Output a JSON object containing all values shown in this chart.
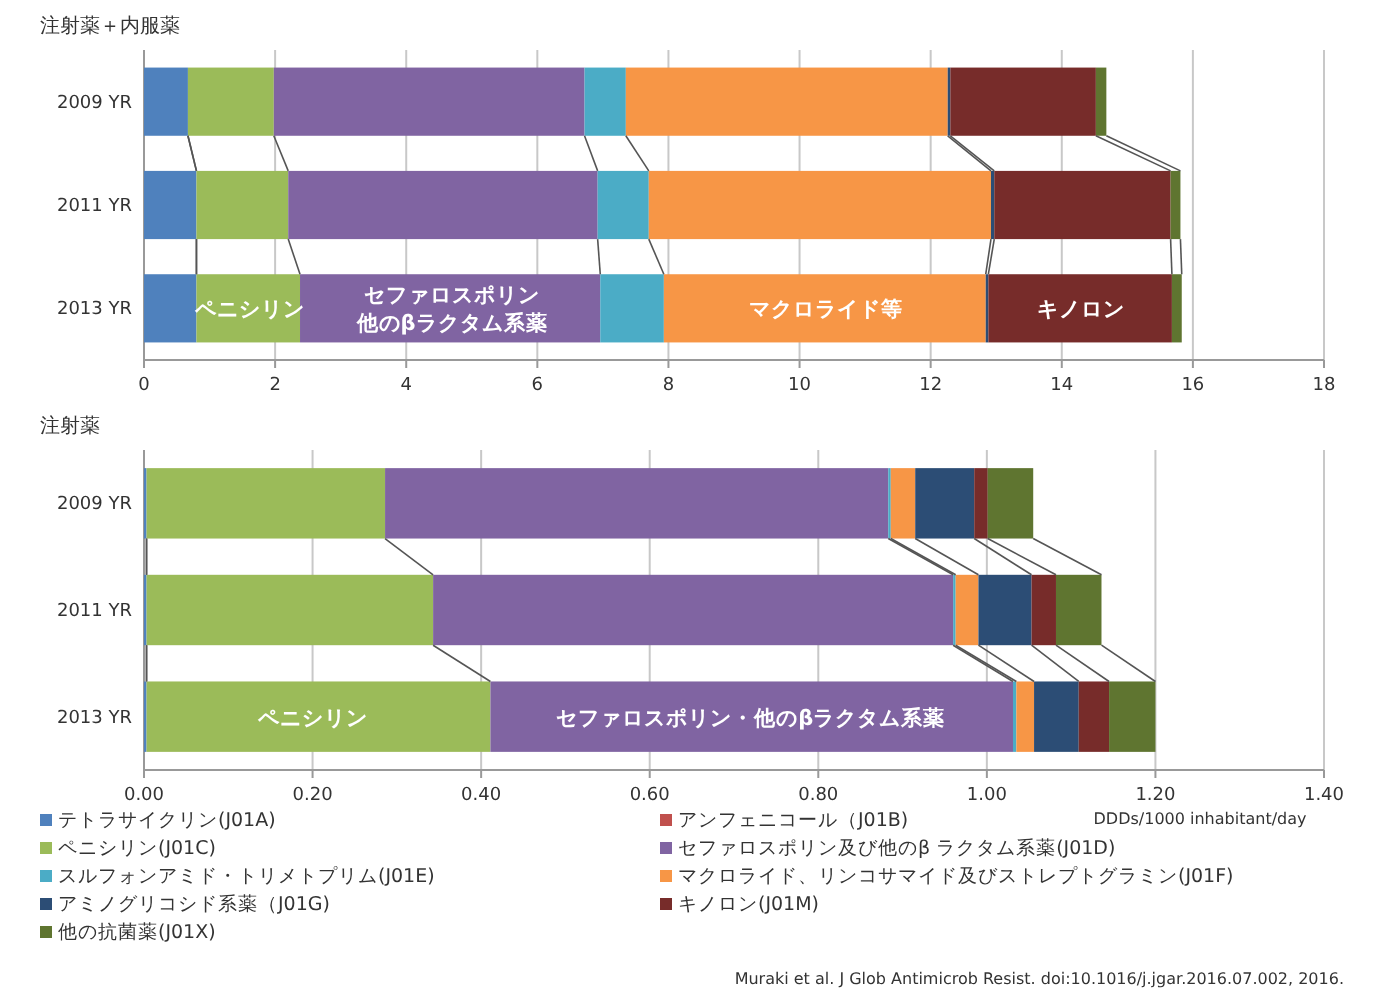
{
  "chart_data": [
    {
      "type": "bar",
      "orientation": "horizontal",
      "stacked": true,
      "title": "注射薬＋内服薬",
      "categories": [
        "2009 YR",
        "2011 YR",
        "2013 YR"
      ],
      "xlim": [
        0,
        18
      ],
      "xticks": [
        0,
        2,
        4,
        6,
        8,
        10,
        12,
        14,
        16,
        18
      ],
      "grid": "x",
      "legend": false,
      "series": [
        {
          "color": "#4f81bd",
          "values": [
            0.67,
            0.8,
            0.8
          ]
        },
        {
          "color": "#c0504d",
          "values": [
            0,
            0,
            0
          ]
        },
        {
          "color": "#9bbb59",
          "values": [
            1.31,
            1.4,
            1.58
          ]
        },
        {
          "color": "#8064a2",
          "values": [
            4.74,
            4.72,
            4.58
          ]
        },
        {
          "color": "#4bacc6",
          "values": [
            0.63,
            0.78,
            0.97
          ]
        },
        {
          "color": "#f79646",
          "values": [
            4.91,
            5.22,
            4.91
          ]
        },
        {
          "color": "#2c4d75",
          "values": [
            0.04,
            0.05,
            0.04
          ]
        },
        {
          "color": "#772c2a",
          "values": [
            2.22,
            2.69,
            2.8
          ]
        },
        {
          "color": "#5f7530",
          "values": [
            0.16,
            0.15,
            0.15
          ]
        }
      ],
      "annotations": [
        "ペニシリン",
        "セファロスポリン",
        "他のβラクタム系薬",
        "マクロライド等",
        "キノロン"
      ]
    },
    {
      "type": "bar",
      "orientation": "horizontal",
      "stacked": true,
      "title": "注射薬",
      "xlabel": "DDDs/1000 inhabitant/day",
      "categories": [
        "2009 YR",
        "2011 YR",
        "2013 YR"
      ],
      "xlim": [
        0,
        1.4
      ],
      "xticks": [
        {
          "value": 0,
          "label": "0.00"
        },
        {
          "value": 0.2,
          "label": "0.20"
        },
        {
          "value": 0.4,
          "label": "0.40"
        },
        {
          "value": 0.6,
          "label": "0.60"
        },
        {
          "value": 0.8,
          "label": "0.80"
        },
        {
          "value": 1,
          "label": "1.00"
        },
        {
          "value": 1.2,
          "label": "1.20"
        },
        {
          "value": 1.4,
          "label": "1.40"
        }
      ],
      "grid": "x",
      "legend": "bottom",
      "series": [
        {
          "name": "テトラサイクリン(J01A)",
          "color": "#4f81bd",
          "values": [
            0.003,
            0.003,
            0.003
          ]
        },
        {
          "name": "アンフェニコール（J01B)",
          "color": "#c0504d",
          "values": [
            0,
            0,
            0
          ]
        },
        {
          "name": "ペニシリン(J01C)",
          "color": "#9bbb59",
          "values": [
            0.283,
            0.34,
            0.408
          ]
        },
        {
          "name": "セファロスポリン及び他のβ ラクタム系薬(J01D)",
          "color": "#8064a2",
          "values": [
            0.597,
            0.617,
            0.62
          ]
        },
        {
          "name": "スルフォンアミド・トリメトプリム(J01E)",
          "color": "#4bacc6",
          "values": [
            0.003,
            0.003,
            0.004
          ]
        },
        {
          "name": "マクロライド、リンコサマイド及びストレプトグラミン(J01F)",
          "color": "#f79646",
          "values": [
            0.029,
            0.027,
            0.021
          ]
        },
        {
          "name": "アミノグリコシド系薬（J01G)",
          "color": "#2c4d75",
          "values": [
            0.07,
            0.063,
            0.053
          ]
        },
        {
          "name": "キノロン(J01M)",
          "color": "#772c2a",
          "values": [
            0.016,
            0.029,
            0.036
          ]
        },
        {
          "name": "他の抗菌薬(J01X)",
          "color": "#5f7530",
          "values": [
            0.054,
            0.054,
            0.055
          ]
        }
      ],
      "annotations": [
        "ペニシリン",
        "セファロスポリン・他のβラクタム系薬",
        "Muraki et al. J Glob Antimicrob Resist. doi:10.1016/j.jgar.2016.07.002, 2016."
      ]
    }
  ]
}
